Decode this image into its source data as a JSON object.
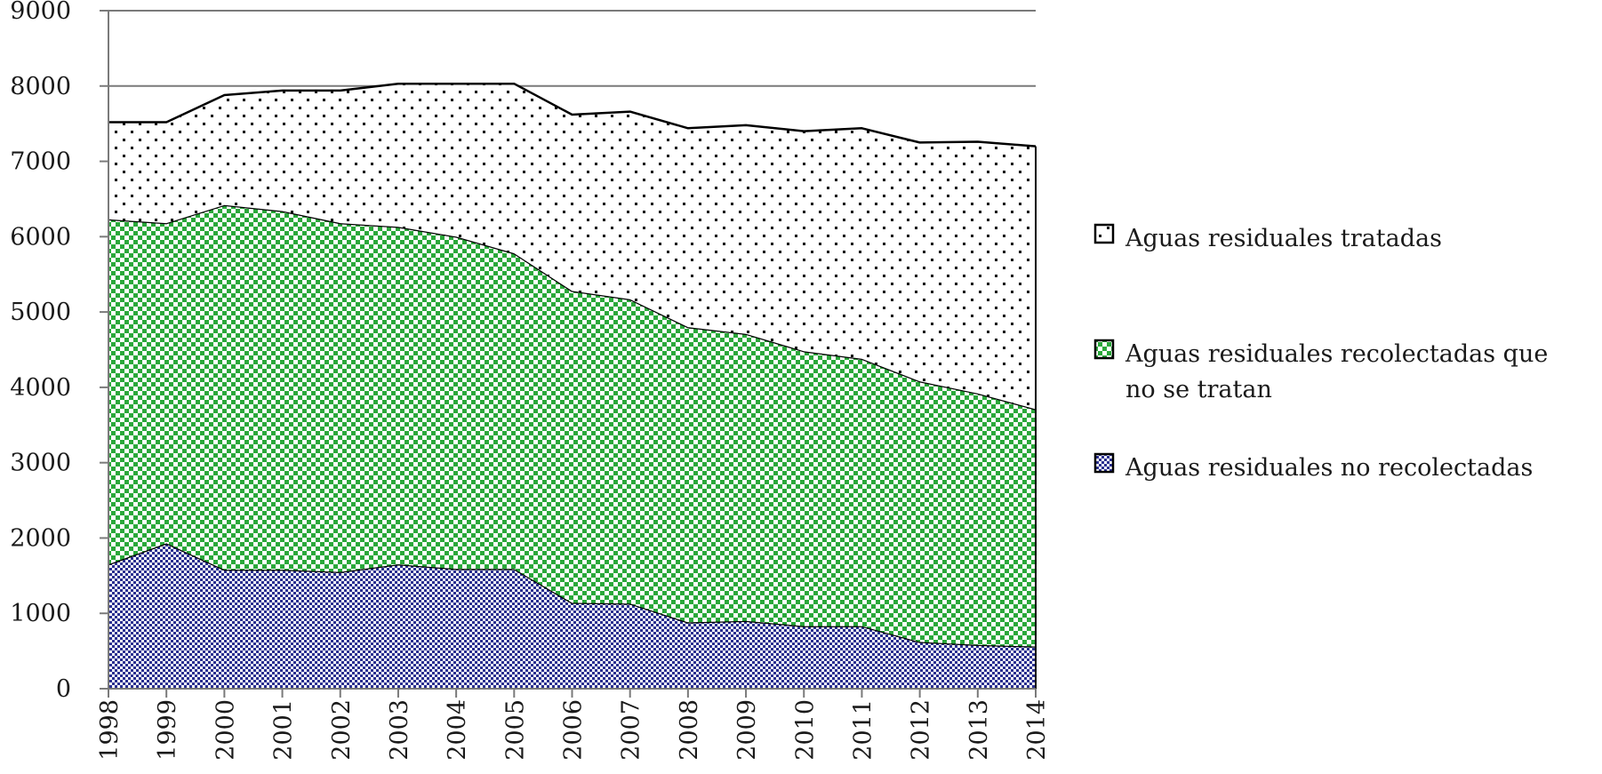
{
  "chart_data": {
    "type": "area",
    "stacked": true,
    "title": "",
    "xlabel": "",
    "ylabel": "",
    "ylim": [
      0,
      9000
    ],
    "yticks": [
      0,
      1000,
      2000,
      3000,
      4000,
      5000,
      6000,
      7000,
      8000,
      9000
    ],
    "grid": "horizontal",
    "legend_position": "right",
    "categories": [
      "1998",
      "1999",
      "2000",
      "2001",
      "2002",
      "2003",
      "2004",
      "2005",
      "2006",
      "2007",
      "2008",
      "2009",
      "2010",
      "2011",
      "2012",
      "2013",
      "2014"
    ],
    "series": [
      {
        "name": "Aguas residuales no recolectadas",
        "pattern": "checker-blue",
        "color": "#2a2f8f",
        "values": [
          1650,
          1930,
          1580,
          1580,
          1550,
          1650,
          1590,
          1590,
          1140,
          1130,
          880,
          900,
          830,
          830,
          620,
          580,
          560
        ]
      },
      {
        "name": "Aguas residuales recolectadas que no se tratan",
        "pattern": "checker-green",
        "color": "#2aa83a",
        "values": [
          4580,
          4250,
          4840,
          4760,
          4630,
          4480,
          4410,
          4190,
          4140,
          4040,
          3920,
          3810,
          3650,
          3550,
          3460,
          3340,
          3150
        ]
      },
      {
        "name": "Aguas residuales tratadas",
        "pattern": "dots",
        "color": "#000000",
        "values": [
          1290,
          1340,
          1460,
          1600,
          1760,
          1900,
          2030,
          2250,
          2340,
          2490,
          2640,
          2770,
          2920,
          3060,
          3170,
          3340,
          3490
        ]
      }
    ]
  }
}
